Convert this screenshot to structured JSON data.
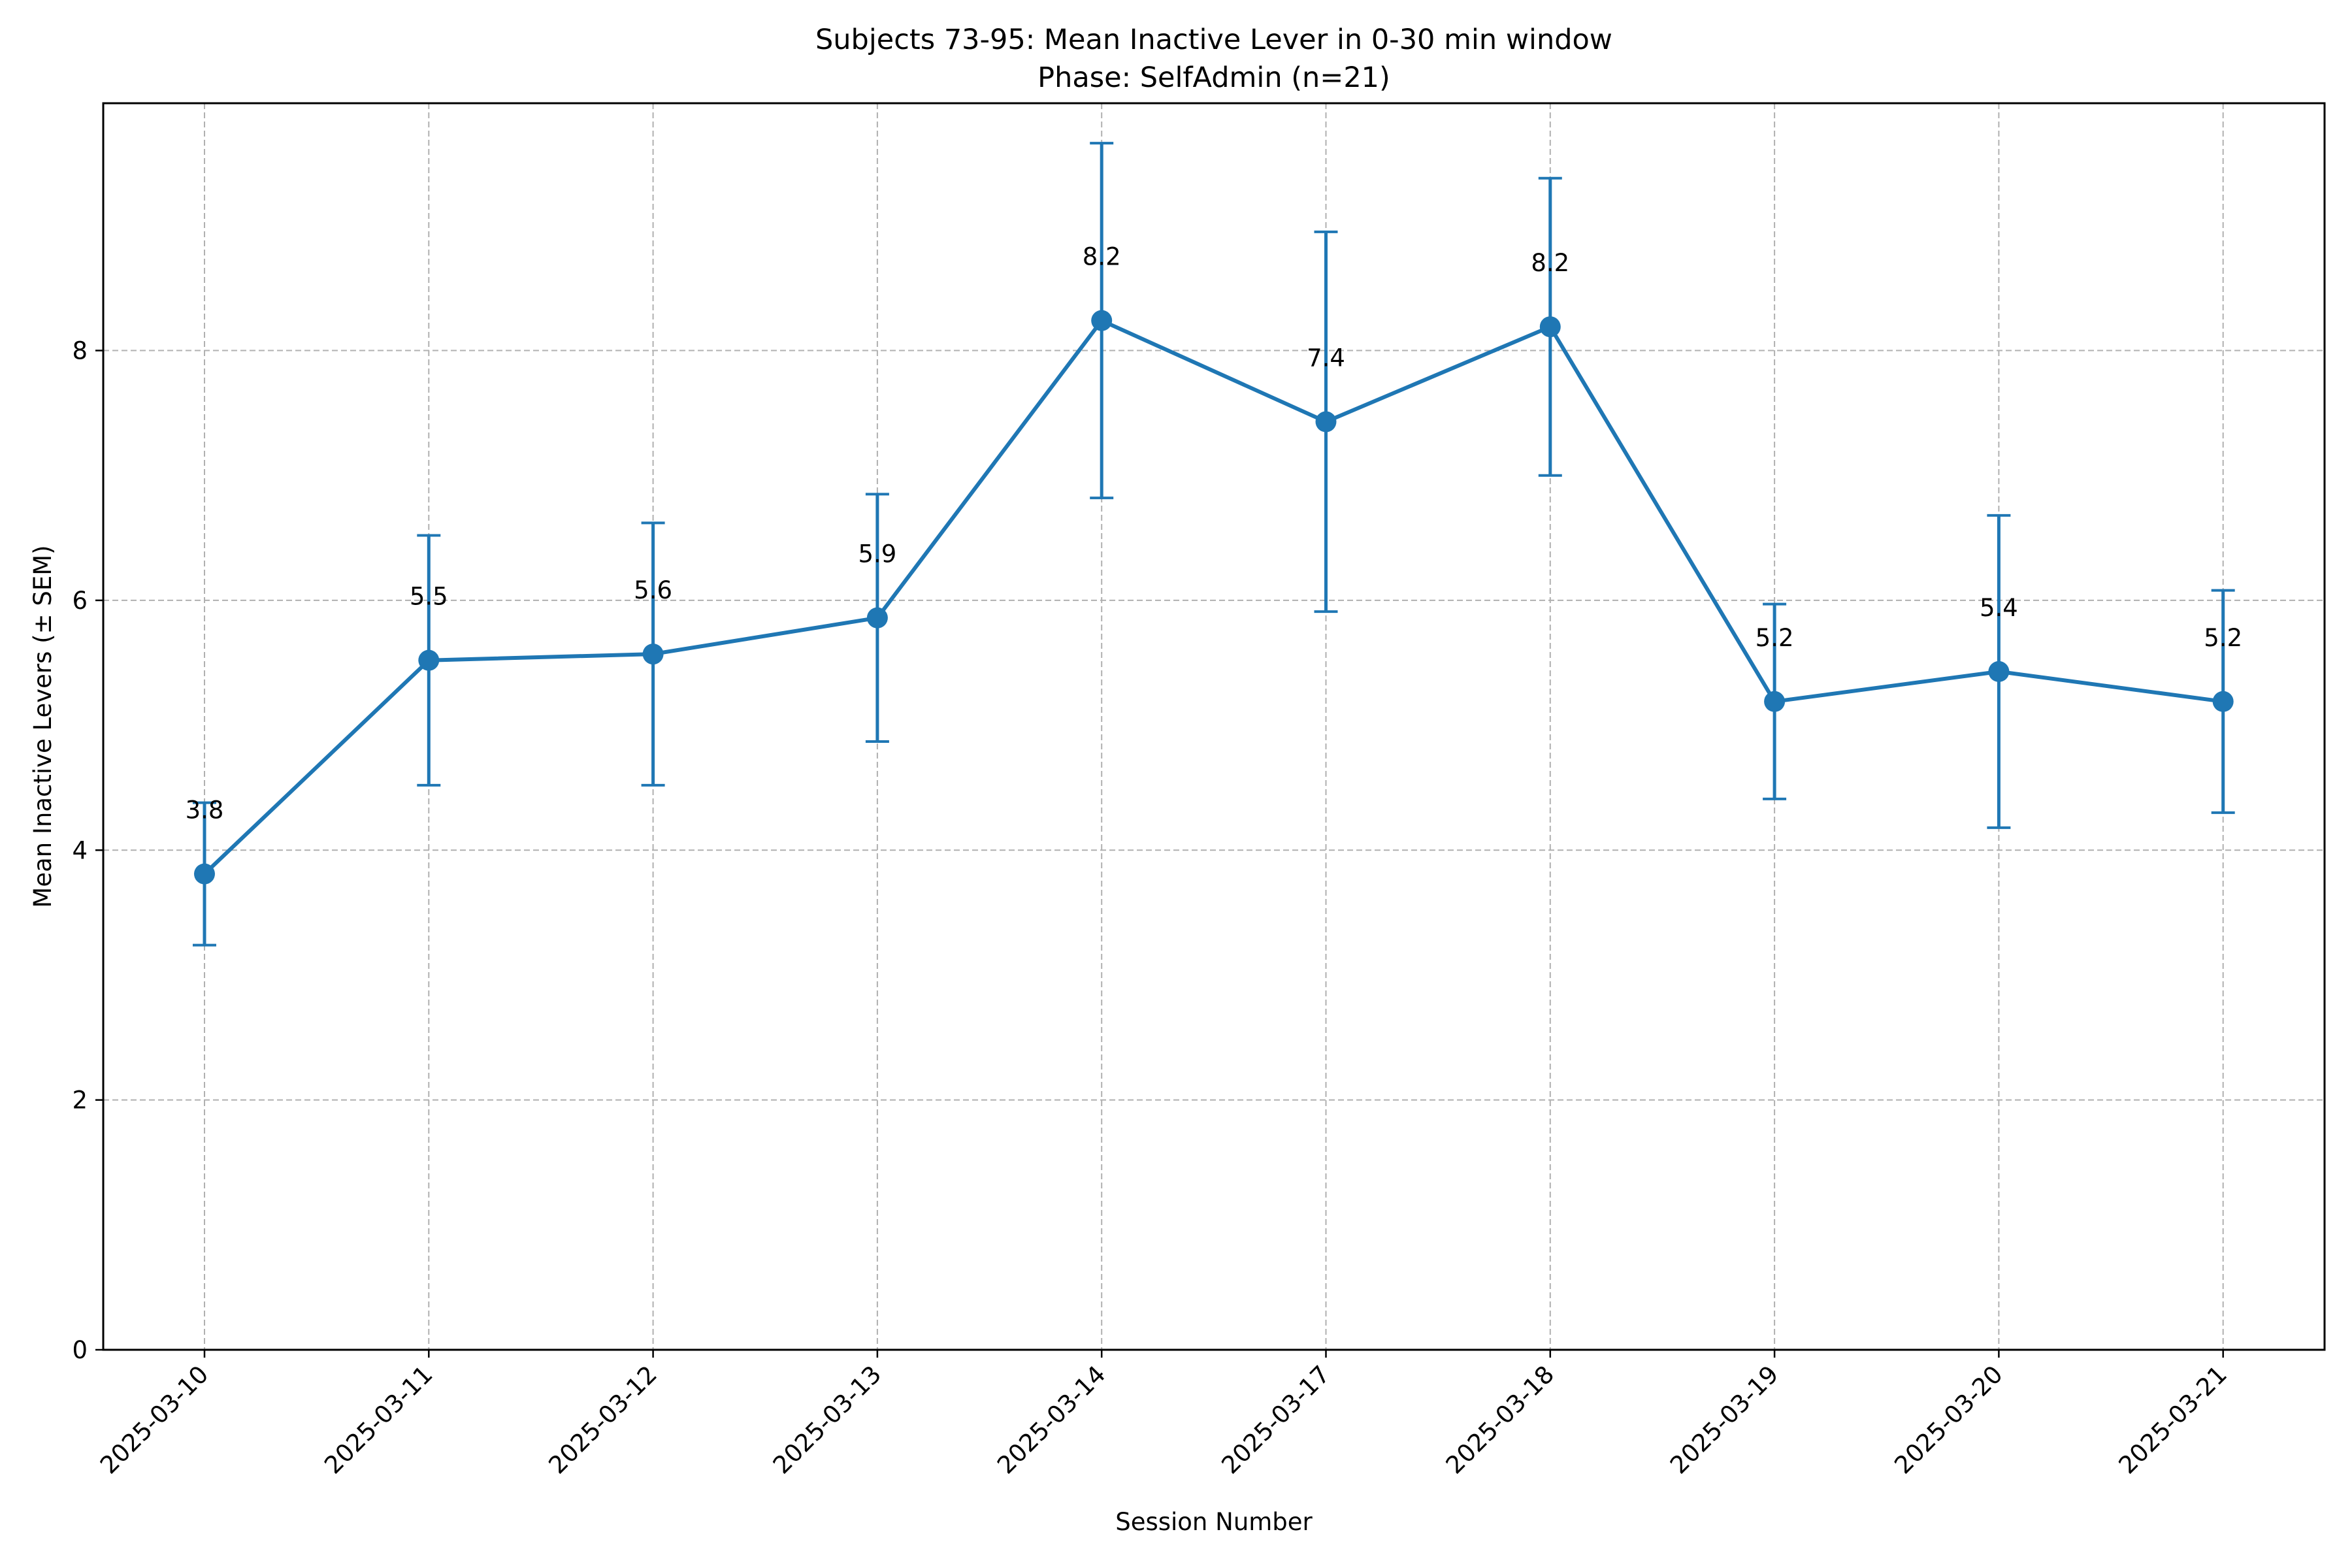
{
  "chart_data": {
    "type": "line",
    "title": "Subjects 73-95: Mean Inactive Lever in 0-30 min window",
    "subtitle": "Phase: SelfAdmin (n=21)",
    "xlabel": "Session Number",
    "ylabel": "Mean Inactive Levers (± SEM)",
    "categories": [
      "2025-03-10",
      "2025-03-11",
      "2025-03-12",
      "2025-03-13",
      "2025-03-14",
      "2025-03-17",
      "2025-03-18",
      "2025-03-19",
      "2025-03-20",
      "2025-03-21"
    ],
    "series": [
      {
        "values": [
          3.81,
          5.52,
          5.57,
          5.86,
          8.24,
          7.43,
          8.19,
          5.19,
          5.43,
          5.19
        ],
        "sem": [
          0.57,
          1.0,
          1.05,
          0.99,
          1.42,
          1.52,
          1.19,
          0.78,
          1.25,
          0.89
        ],
        "data_labels": [
          "3.8",
          "5.5",
          "5.6",
          "5.9",
          "8.2",
          "7.4",
          "8.2",
          "5.2",
          "5.4",
          "5.2"
        ]
      }
    ],
    "ylim": [
      0,
      9.98
    ],
    "yticks": [
      0,
      2,
      4,
      6,
      8
    ],
    "grid": true,
    "line_color": "#1f77b4",
    "grid_color": "#b0b0b0"
  }
}
